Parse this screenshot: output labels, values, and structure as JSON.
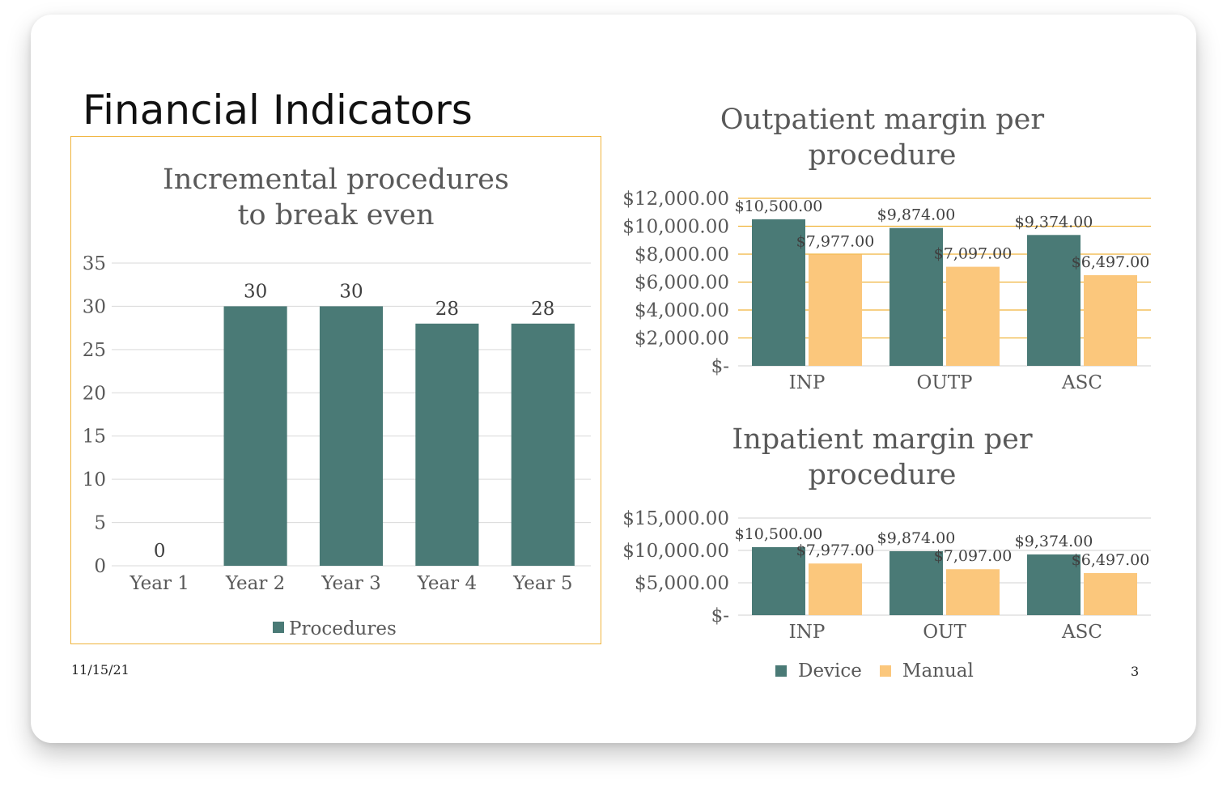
{
  "slide": {
    "title": "Financial Indicators",
    "date": "11/15/21",
    "page_number": "3"
  },
  "colors": {
    "device": "#4a7a76",
    "manual": "#fbc77c",
    "frame_border": "#f0b43c",
    "grid": "#d9d9d9",
    "grid_accent": "#f0b43c",
    "text": "#595959"
  },
  "legend": {
    "device": "Device",
    "manual": "Manual"
  },
  "chart_data": [
    {
      "id": "procedures",
      "type": "bar",
      "title_lines": [
        "Incremental procedures",
        "to break even"
      ],
      "categories": [
        "Year 1",
        "Year 2",
        "Year 3",
        "Year 4",
        "Year 5"
      ],
      "series": [
        {
          "name": "Procedures",
          "values": [
            0,
            30,
            30,
            28,
            28
          ]
        }
      ],
      "ylim": [
        0,
        35
      ],
      "yticks": [
        "0",
        "5",
        "10",
        "15",
        "20",
        "25",
        "30",
        "35"
      ],
      "data_labels": [
        "0",
        "30",
        "30",
        "28",
        "28"
      ],
      "legend": "bottom"
    },
    {
      "id": "outpatient",
      "type": "bar",
      "title_lines": [
        "Outpatient margin per",
        "procedure"
      ],
      "categories": [
        "INP",
        "OUTP",
        "ASC"
      ],
      "series": [
        {
          "name": "Device",
          "values": [
            10500,
            9874,
            9374
          ]
        },
        {
          "name": "Manual",
          "values": [
            7977,
            7097,
            6497
          ]
        }
      ],
      "data_labels": [
        [
          "$10,500.00",
          "$9,874.00",
          "$9,374.00"
        ],
        [
          "$7,977.00",
          "$7,097.00",
          "$6,497.00"
        ]
      ],
      "ylim": [
        0,
        12000
      ],
      "yticks": [
        "$-",
        "$2,000.00",
        "$4,000.00",
        "$6,000.00",
        "$8,000.00",
        "$10,000.00",
        "$12,000.00"
      ]
    },
    {
      "id": "inpatient",
      "type": "bar",
      "title_lines": [
        "Inpatient margin per",
        "procedure"
      ],
      "categories": [
        "INP",
        "OUT",
        "ASC"
      ],
      "series": [
        {
          "name": "Device",
          "values": [
            10500,
            9874,
            9374
          ]
        },
        {
          "name": "Manual",
          "values": [
            7977,
            7097,
            6497
          ]
        }
      ],
      "data_labels": [
        [
          "$10,500.00",
          "$9,874.00",
          "$9,374.00"
        ],
        [
          "$7,977.00",
          "$7,097.00",
          "$6,497.00"
        ]
      ],
      "ylim": [
        0,
        15000
      ],
      "yticks": [
        "$-",
        "$5,000.00",
        "$10,000.00",
        "$15,000.00"
      ],
      "legend": "bottom"
    }
  ]
}
